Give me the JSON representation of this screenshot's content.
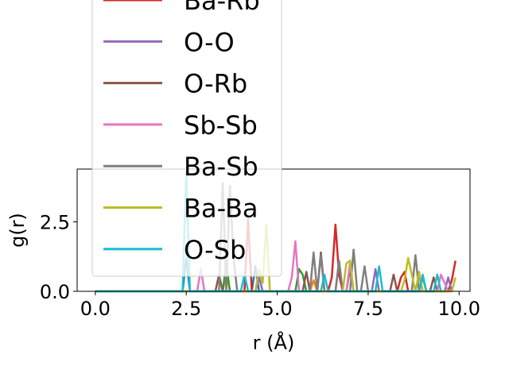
{
  "chart_data": {
    "type": "line",
    "xlabel": "r (Å)",
    "ylabel": "g(r)",
    "xlim": [
      -0.5,
      10.3
    ],
    "ylim": [
      0,
      4.4
    ],
    "x_ticks": [
      "0.0",
      "2.5",
      "5.0",
      "7.5",
      "10.0"
    ],
    "x_tick_values": [
      0,
      2.5,
      5,
      7.5,
      10
    ],
    "y_ticks": [
      "0.0",
      "2.5"
    ],
    "y_tick_values": [
      0,
      2.5
    ],
    "grid": false,
    "legend_placement": "upper-left (extends above axes)",
    "series": [
      {
        "name": "Ba-Rb",
        "color": "#d62728",
        "x": [
          0,
          4.0,
          4.1,
          4.2,
          4.3,
          4.4,
          5.6,
          6.4,
          6.5,
          6.6,
          6.7,
          6.8,
          8.3,
          8.4,
          8.5,
          8.6,
          9.7,
          9.8,
          9.9
        ],
        "y": [
          0,
          0,
          0,
          2.6,
          0,
          0,
          0,
          0,
          0.5,
          2.4,
          0.6,
          0,
          0,
          0.5,
          0.7,
          0,
          0,
          0.4,
          1.1
        ]
      },
      {
        "name": "O-O",
        "color": "#9467bd",
        "x": [
          0,
          4.4,
          4.5,
          4.6,
          6.6,
          6.7,
          6.8,
          7.6,
          7.7,
          7.8,
          8.8,
          8.9,
          9.0,
          9.6,
          9.7,
          9.8
        ],
        "y": [
          0,
          0,
          0.5,
          0,
          0,
          1.1,
          0,
          0,
          0.8,
          0,
          0,
          0.6,
          0,
          0,
          0.5,
          0
        ]
      },
      {
        "name": "O-Rb",
        "color": "#8c564b",
        "x": [
          0,
          3.3,
          3.4,
          3.5,
          5.7,
          5.8,
          5.9,
          6.1,
          6.2,
          6.3,
          6.9,
          7.0,
          7.1,
          8.1,
          8.2,
          8.3,
          9.2,
          9.3,
          9.4
        ],
        "y": [
          0,
          0,
          0.6,
          0,
          0,
          0.7,
          0,
          0,
          1.4,
          0,
          0,
          0.8,
          0,
          0,
          0.6,
          0,
          0,
          0.5,
          0
        ]
      },
      {
        "name": "Sb-Sb",
        "color": "#e377c2",
        "x": [
          0,
          2.8,
          2.9,
          3.0,
          5.3,
          5.4,
          5.5,
          5.6,
          6.9,
          7.0,
          7.1,
          9.4,
          9.5,
          9.6,
          9.7
        ],
        "y": [
          0,
          0,
          0.8,
          0,
          0,
          0.5,
          1.8,
          0,
          0,
          1.0,
          0,
          0,
          0.6,
          0.3,
          0
        ]
      },
      {
        "name": "Ba-Sb",
        "color": "#7f7f7f",
        "x": [
          0,
          3.4,
          3.5,
          3.6,
          3.7,
          3.8,
          3.9,
          5.9,
          6.0,
          6.1,
          6.2,
          6.3,
          6.6,
          6.7,
          6.8,
          7.0,
          7.1,
          7.2,
          7.3,
          7.4,
          7.5,
          7.6,
          8.7,
          8.8,
          8.9,
          9.0,
          9.1
        ],
        "y": [
          0,
          0,
          3.9,
          0,
          3.8,
          1.2,
          0,
          0,
          1.4,
          0,
          1.3,
          0,
          0,
          1.1,
          0,
          0,
          1.5,
          0,
          0,
          0.9,
          0,
          0,
          0,
          1.3,
          0,
          0.5,
          0
        ]
      },
      {
        "name": "Ba-Ba",
        "color": "#bcbd22",
        "x": [
          0,
          4.4,
          4.5,
          4.6,
          4.7,
          4.8,
          6.8,
          6.9,
          7.0,
          7.1,
          7.2,
          8.4,
          8.5,
          8.6,
          8.7,
          8.8,
          8.9,
          9.0,
          9.8,
          9.9
        ],
        "y": [
          0,
          0,
          0.8,
          0.3,
          2.4,
          0,
          0,
          1.0,
          1.1,
          0,
          0,
          0,
          0.4,
          1.2,
          0.6,
          0,
          0.7,
          0,
          0,
          0.5
        ]
      },
      {
        "name": "O-Sb",
        "color": "#17becf",
        "x": [
          0,
          2.4,
          2.5,
          2.6,
          4.0,
          4.1,
          4.2,
          6.2,
          6.3,
          6.4,
          7.7,
          7.8,
          7.9,
          8.9,
          9.0,
          9.1,
          9.3,
          9.4,
          9.5
        ],
        "y": [
          0,
          0,
          4.3,
          0,
          0,
          0.6,
          0,
          0,
          0.6,
          0,
          0,
          0.9,
          0,
          0,
          0.6,
          0,
          0,
          0.6,
          0
        ]
      }
    ],
    "hidden_series_colors": [
      "#1f77b4",
      "#ff7f0e",
      "#2ca02c"
    ],
    "hidden_series": [
      {
        "color": "#1f77b4",
        "x": [
          0,
          2.4,
          2.5,
          2.6,
          4.3,
          4.4,
          4.5
        ],
        "y": [
          0,
          0,
          1.2,
          0,
          0,
          0.9,
          0
        ]
      },
      {
        "color": "#ff7f0e",
        "x": [
          0,
          3.5,
          3.6,
          3.7,
          5.9,
          6.0,
          6.1
        ],
        "y": [
          0,
          0,
          0.7,
          0,
          0,
          0.4,
          0
        ]
      },
      {
        "color": "#2ca02c",
        "x": [
          0,
          3.5,
          3.6,
          3.7,
          5.5,
          5.6,
          5.7,
          5.8
        ],
        "y": [
          0,
          0,
          1.0,
          0,
          0,
          0.8,
          0.6,
          0
        ]
      }
    ]
  }
}
